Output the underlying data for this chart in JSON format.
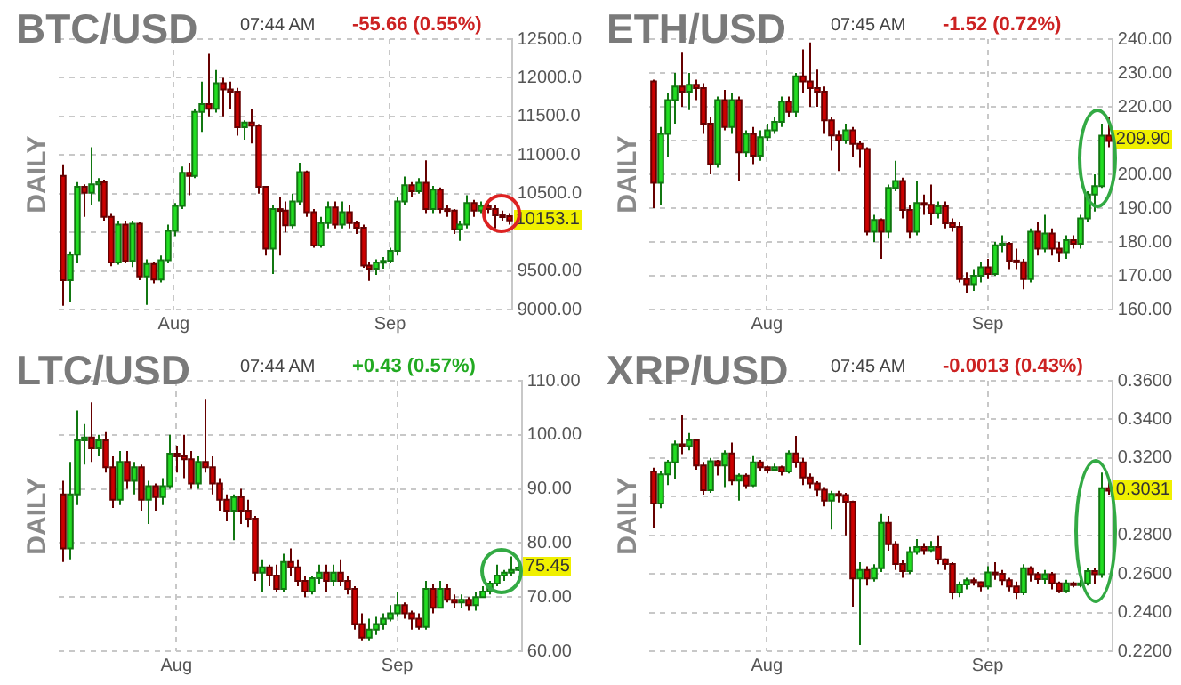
{
  "chart_data": [
    {
      "type": "candlestick",
      "title": "BTC/USD",
      "ylabel": "DAILY",
      "grid": true,
      "annotations": [
        "07:44 AM",
        "-55.66 (0.55%)",
        "10153.1"
      ],
      "categories": [
        null,
        null,
        null,
        null,
        null,
        null,
        null,
        null,
        null,
        null,
        null,
        null,
        null,
        null,
        null,
        null,
        "Aug",
        null,
        null,
        null,
        null,
        null,
        null,
        null,
        null,
        null,
        null,
        null,
        null,
        null,
        null,
        null,
        null,
        null,
        null,
        null,
        null,
        null,
        null,
        null,
        null,
        null,
        null,
        null,
        null,
        null,
        null,
        "Sep",
        null,
        null,
        null,
        null,
        null,
        null,
        null,
        null,
        null,
        null,
        null,
        null,
        null,
        null,
        null,
        null,
        null
      ],
      "ylim": [
        9000,
        12500
      ],
      "yticks": [
        {
          "value": 9000,
          "label": "9000.00"
        },
        {
          "value": 9500,
          "label": "9500.00"
        },
        {
          "value": 10000,
          "label": null
        },
        {
          "value": 10500,
          "label": "10500.0"
        },
        {
          "value": 11000,
          "label": "11000.0"
        },
        {
          "value": 11500,
          "label": "11500.0"
        },
        {
          "value": 12000,
          "label": "12000.0"
        },
        {
          "value": 12500,
          "label": "12500.0"
        }
      ],
      "ohlc": [
        [
          10730,
          10880,
          9050,
          9380
        ],
        [
          9380,
          9750,
          9100,
          9710
        ],
        [
          9710,
          10650,
          9600,
          10590
        ],
        [
          10590,
          10620,
          10200,
          10510
        ],
        [
          10510,
          11100,
          10350,
          10620
        ],
        [
          10620,
          10700,
          10400,
          10650
        ],
        [
          10650,
          10680,
          10150,
          10200
        ],
        [
          10200,
          10250,
          9560,
          9610
        ],
        [
          9610,
          10150,
          9580,
          10100
        ],
        [
          10100,
          10150,
          9600,
          9630
        ],
        [
          9630,
          10150,
          9550,
          10110
        ],
        [
          10110,
          10140,
          9380,
          9430
        ],
        [
          9430,
          9650,
          9060,
          9590
        ],
        [
          9590,
          9620,
          9340,
          9390
        ],
        [
          9390,
          9700,
          9350,
          9640
        ],
        [
          9640,
          10100,
          9600,
          10020
        ],
        [
          10020,
          10380,
          9950,
          10340
        ],
        [
          10340,
          10850,
          10300,
          10770
        ],
        [
          10770,
          10900,
          10480,
          10730
        ],
        [
          10730,
          11600,
          10700,
          11560
        ],
        [
          11560,
          11950,
          11300,
          11660
        ],
        [
          11660,
          12310,
          11500,
          11600
        ],
        [
          11600,
          12100,
          11550,
          11930
        ],
        [
          11930,
          12000,
          11500,
          11850
        ],
        [
          11850,
          11950,
          11600,
          11820
        ],
        [
          11820,
          11870,
          11250,
          11360
        ],
        [
          11360,
          11450,
          11200,
          11420
        ],
        [
          11420,
          11600,
          11150,
          11380
        ],
        [
          11380,
          11400,
          10500,
          10590
        ],
        [
          10590,
          10600,
          9700,
          9790
        ],
        [
          9790,
          10350,
          9460,
          10300
        ],
        [
          10300,
          10450,
          9700,
          10280
        ],
        [
          10280,
          10400,
          10000,
          10090
        ],
        [
          10090,
          10500,
          10050,
          10400
        ],
        [
          10400,
          10900,
          10350,
          10780
        ],
        [
          10780,
          10800,
          10200,
          10260
        ],
        [
          10260,
          10300,
          9800,
          9830
        ],
        [
          9830,
          10200,
          9800,
          10120
        ],
        [
          10120,
          10400,
          10050,
          10320
        ],
        [
          10320,
          10400,
          10050,
          10100
        ],
        [
          10100,
          10400,
          10050,
          10260
        ],
        [
          10260,
          10350,
          10050,
          10120
        ],
        [
          10120,
          10150,
          9980,
          10060
        ],
        [
          10060,
          10100,
          9540,
          9570
        ],
        [
          9570,
          9620,
          9370,
          9530
        ],
        [
          9530,
          9650,
          9450,
          9610
        ],
        [
          9610,
          9680,
          9530,
          9630
        ],
        [
          9630,
          9800,
          9600,
          9760
        ],
        [
          9760,
          10450,
          9700,
          10400
        ],
        [
          10400,
          10720,
          10350,
          10610
        ],
        [
          10610,
          10650,
          10450,
          10530
        ],
        [
          10530,
          10700,
          10500,
          10640
        ],
        [
          10640,
          10930,
          10250,
          10300
        ],
        [
          10300,
          10600,
          10250,
          10550
        ],
        [
          10550,
          10580,
          10250,
          10300
        ],
        [
          10300,
          10350,
          10200,
          10280
        ],
        [
          10280,
          10300,
          9980,
          10040
        ],
        [
          10040,
          10150,
          9890,
          10100
        ],
        [
          10100,
          10480,
          10050,
          10380
        ],
        [
          10380,
          10420,
          10200,
          10280
        ],
        [
          10280,
          10400,
          10250,
          10340
        ],
        [
          10340,
          10400,
          10250,
          10300
        ],
        [
          10300,
          10350,
          10050,
          10220
        ],
        [
          10220,
          10280,
          10150,
          10208.8
        ],
        [
          10208.8,
          10250,
          10100,
          10153.1
        ]
      ]
    },
    {
      "type": "candlestick",
      "title": "ETH/USD",
      "ylabel": "DAILY",
      "grid": true,
      "annotations": [
        "07:45 AM",
        "-1.52 (0.72%)",
        "209.90"
      ],
      "categories": [
        null,
        null,
        null,
        null,
        null,
        null,
        null,
        null,
        null,
        null,
        null,
        null,
        null,
        null,
        null,
        null,
        "Aug",
        null,
        null,
        null,
        null,
        null,
        null,
        null,
        null,
        null,
        null,
        null,
        null,
        null,
        null,
        null,
        null,
        null,
        null,
        null,
        null,
        null,
        null,
        null,
        null,
        null,
        null,
        null,
        null,
        null,
        null,
        "Sep",
        null,
        null,
        null,
        null,
        null,
        null,
        null,
        null,
        null,
        null,
        null,
        null,
        null,
        null,
        null,
        null,
        null
      ],
      "ylim": [
        160,
        240
      ],
      "yticks": [
        {
          "value": 160,
          "label": "160.00"
        },
        {
          "value": 170,
          "label": "170.00"
        },
        {
          "value": 180,
          "label": "180.00"
        },
        {
          "value": 190,
          "label": "190.00"
        },
        {
          "value": 200,
          "label": "200.00"
        },
        {
          "value": 210,
          "label": null
        },
        {
          "value": 220,
          "label": "220.00"
        },
        {
          "value": 230,
          "label": "230.00"
        },
        {
          "value": 240,
          "label": "240.00"
        }
      ],
      "ohlc": [
        [
          227.5,
          228,
          190,
          197.5
        ],
        [
          197.5,
          214,
          191,
          212
        ],
        [
          212,
          224,
          205,
          222
        ],
        [
          222,
          230,
          215,
          226
        ],
        [
          226,
          236,
          220,
          224.5
        ],
        [
          224.5,
          230,
          219,
          226.5
        ],
        [
          226.5,
          228,
          222,
          225.5
        ],
        [
          225.5,
          227,
          212,
          215
        ],
        [
          215,
          217,
          200,
          203
        ],
        [
          203,
          223,
          202,
          222
        ],
        [
          222,
          225,
          213,
          214
        ],
        [
          214,
          224,
          212,
          222
        ],
        [
          222,
          223,
          198,
          206.5
        ],
        [
          206.5,
          213,
          205,
          212
        ],
        [
          212,
          214,
          203,
          205.5
        ],
        [
          205.5,
          213,
          204,
          211
        ],
        [
          211,
          215,
          210,
          213
        ],
        [
          213,
          217,
          212,
          215.5
        ],
        [
          215.5,
          223,
          214,
          221.5
        ],
        [
          221.5,
          223,
          217,
          218.5
        ],
        [
          218.5,
          230,
          217,
          229
        ],
        [
          229,
          237,
          224,
          227.5
        ],
        [
          227.5,
          239,
          220,
          225.5
        ],
        [
          225.5,
          231,
          220,
          224.5
        ],
        [
          224.5,
          226,
          212,
          216
        ],
        [
          216,
          217,
          207,
          211.5
        ],
        [
          211.5,
          213,
          201,
          210
        ],
        [
          210,
          215,
          209,
          213
        ],
        [
          213,
          214,
          205,
          209
        ],
        [
          209,
          210,
          202,
          207.5
        ],
        [
          207.5,
          208,
          182,
          183
        ],
        [
          183,
          188,
          180,
          186.5
        ],
        [
          186.5,
          187,
          175,
          183
        ],
        [
          183,
          197,
          181,
          196
        ],
        [
          196,
          204,
          195,
          198
        ],
        [
          198,
          199,
          187,
          189.5
        ],
        [
          189.5,
          191,
          181,
          183
        ],
        [
          183,
          198,
          182,
          191.5
        ],
        [
          191.5,
          194,
          188,
          191
        ],
        [
          191,
          197,
          185,
          188.5
        ],
        [
          188.5,
          192,
          187,
          190.5
        ],
        [
          190.5,
          192,
          184,
          185.5
        ],
        [
          185.5,
          187,
          183,
          184.5
        ],
        [
          184.5,
          186,
          168,
          169
        ],
        [
          169,
          171,
          165,
          167.5
        ],
        [
          167.5,
          172,
          165.5,
          170
        ],
        [
          170,
          174,
          168,
          172.5
        ],
        [
          172.5,
          175,
          169,
          170.5
        ],
        [
          170.5,
          180,
          170,
          179
        ],
        [
          179,
          182,
          177,
          179.5
        ],
        [
          179.5,
          180,
          172,
          174.5
        ],
        [
          174.5,
          178,
          172,
          174
        ],
        [
          174,
          175,
          166,
          169
        ],
        [
          169,
          184,
          168,
          183
        ],
        [
          183,
          186,
          176,
          178
        ],
        [
          178,
          188,
          177,
          182.5
        ],
        [
          182.5,
          184,
          176,
          178
        ],
        [
          178,
          180,
          174,
          177
        ],
        [
          177,
          182,
          175,
          180.5
        ],
        [
          180.5,
          182,
          178,
          179.5
        ],
        [
          179.5,
          188,
          178,
          187
        ],
        [
          187,
          195,
          186,
          194
        ],
        [
          194,
          200,
          189,
          196.5
        ],
        [
          196.5,
          215,
          196,
          211.42
        ],
        [
          211.42,
          217,
          208,
          209.9
        ]
      ]
    },
    {
      "type": "candlestick",
      "title": "LTC/USD",
      "ylabel": "DAILY",
      "grid": true,
      "annotations": [
        "07:44 AM",
        "+0.43 (0.57%)",
        "75.45"
      ],
      "categories": [
        null,
        null,
        null,
        null,
        null,
        null,
        null,
        null,
        null,
        null,
        null,
        null,
        null,
        null,
        null,
        null,
        "Aug",
        null,
        null,
        null,
        null,
        null,
        null,
        null,
        null,
        null,
        null,
        null,
        null,
        null,
        null,
        null,
        null,
        null,
        null,
        null,
        null,
        null,
        null,
        null,
        null,
        null,
        null,
        null,
        null,
        null,
        null,
        "Sep",
        null,
        null,
        null,
        null,
        null,
        null,
        null,
        null,
        null,
        null,
        null,
        null,
        null,
        null,
        null,
        null,
        null
      ],
      "ylim": [
        60,
        110
      ],
      "yticks": [
        {
          "value": 60,
          "label": "60.00"
        },
        {
          "value": 70,
          "label": "70.00"
        },
        {
          "value": 80,
          "label": "80.00"
        },
        {
          "value": 90,
          "label": "90.00"
        },
        {
          "value": 100,
          "label": "100.00"
        },
        {
          "value": 110,
          "label": "110.00"
        }
      ],
      "ohlc": [
        [
          89,
          91.5,
          76.5,
          79
        ],
        [
          79,
          95,
          77,
          89
        ],
        [
          89,
          104.5,
          87,
          99
        ],
        [
          99,
          102,
          94.5,
          99.5
        ],
        [
          99.5,
          106,
          95,
          97.5
        ],
        [
          97.5,
          100,
          96,
          99
        ],
        [
          99,
          100.5,
          93,
          94
        ],
        [
          94,
          96,
          86.5,
          88
        ],
        [
          88,
          97,
          87,
          95
        ],
        [
          95,
          97,
          90,
          91.5
        ],
        [
          91.5,
          95,
          89,
          94
        ],
        [
          94,
          94.5,
          86,
          88
        ],
        [
          88,
          91.5,
          83.5,
          90.5
        ],
        [
          90.5,
          91,
          86,
          88.5
        ],
        [
          88.5,
          92,
          87,
          90.5
        ],
        [
          90.5,
          100,
          90,
          96.5
        ],
        [
          96.5,
          98,
          93,
          96
        ],
        [
          96,
          100,
          92,
          95.5
        ],
        [
          95.5,
          97,
          90,
          91
        ],
        [
          91,
          96,
          90,
          95
        ],
        [
          95,
          106.5,
          93,
          94
        ],
        [
          94,
          96,
          89,
          91
        ],
        [
          91,
          92,
          86,
          88
        ],
        [
          88,
          89,
          84,
          86
        ],
        [
          86,
          89,
          80.5,
          88.5
        ],
        [
          88.5,
          90,
          83.5,
          86
        ],
        [
          86,
          88,
          83,
          84.5
        ],
        [
          84.5,
          85,
          73,
          74.5
        ],
        [
          74.5,
          77,
          71,
          75.5
        ],
        [
          75.5,
          76,
          72,
          74
        ],
        [
          74,
          76,
          71,
          71.5
        ],
        [
          71.5,
          78,
          71,
          76.5
        ],
        [
          76.5,
          79,
          74,
          75.5
        ],
        [
          75.5,
          77,
          72,
          73
        ],
        [
          73,
          74,
          70,
          71
        ],
        [
          71,
          74,
          70.5,
          73.5
        ],
        [
          73.5,
          76,
          72.5,
          74.5
        ],
        [
          74.5,
          76,
          71,
          73
        ],
        [
          73,
          76,
          72,
          74.5
        ],
        [
          74.5,
          77,
          72,
          73
        ],
        [
          73,
          74,
          70.5,
          71.5
        ],
        [
          71.5,
          72,
          64,
          65
        ],
        [
          65,
          67,
          62,
          62.5
        ],
        [
          62.5,
          66,
          62,
          64
        ],
        [
          64,
          66.5,
          63,
          65
        ],
        [
          65,
          67,
          64,
          66
        ],
        [
          66,
          68.5,
          65.5,
          67
        ],
        [
          67,
          71,
          66.5,
          68.5
        ],
        [
          68.5,
          69,
          66,
          67
        ],
        [
          67,
          67.5,
          64,
          66
        ],
        [
          66,
          67,
          64,
          64.5
        ],
        [
          64.5,
          73,
          64,
          71.5
        ],
        [
          71.5,
          72.5,
          67,
          68
        ],
        [
          68,
          73,
          68,
          71.5
        ],
        [
          71.5,
          72.5,
          69,
          69.5
        ],
        [
          69.5,
          70.5,
          68,
          69
        ],
        [
          69,
          70.5,
          68,
          69.5
        ],
        [
          69.5,
          70,
          67.5,
          68.5
        ],
        [
          68.5,
          71,
          67.5,
          70
        ],
        [
          70,
          72,
          70,
          71
        ],
        [
          71,
          73,
          70.5,
          72.5
        ],
        [
          72.5,
          76,
          72,
          74
        ],
        [
          74,
          75,
          73,
          74.5
        ],
        [
          74.5,
          77.5,
          74,
          75.02
        ],
        [
          75.02,
          76,
          74.8,
          75.45
        ]
      ]
    },
    {
      "type": "candlestick",
      "title": "XRP/USD",
      "ylabel": "DAILY",
      "grid": true,
      "annotations": [
        "07:45 AM",
        "-0.0013 (0.43%)",
        "0.3031"
      ],
      "categories": [
        null,
        null,
        null,
        null,
        null,
        null,
        null,
        null,
        null,
        null,
        null,
        null,
        null,
        null,
        null,
        null,
        "Aug",
        null,
        null,
        null,
        null,
        null,
        null,
        null,
        null,
        null,
        null,
        null,
        null,
        null,
        null,
        null,
        null,
        null,
        null,
        null,
        null,
        null,
        null,
        null,
        null,
        null,
        null,
        null,
        null,
        null,
        null,
        "Sep",
        null,
        null,
        null,
        null,
        null,
        null,
        null,
        null,
        null,
        null,
        null,
        null,
        null,
        null,
        null,
        null,
        null
      ],
      "ylim": [
        0.22,
        0.36
      ],
      "yticks": [
        {
          "value": 0.22,
          "label": "0.2200"
        },
        {
          "value": 0.24,
          "label": "0.2400"
        },
        {
          "value": 0.26,
          "label": "0.2600"
        },
        {
          "value": 0.28,
          "label": "0.2800"
        },
        {
          "value": 0.3,
          "label": null
        },
        {
          "value": 0.32,
          "label": "0.3200"
        },
        {
          "value": 0.34,
          "label": "0.3400"
        },
        {
          "value": 0.36,
          "label": "0.3600"
        }
      ],
      "ohlc": [
        [
          0.313,
          0.315,
          0.284,
          0.2964
        ],
        [
          0.2964,
          0.313,
          0.294,
          0.3115
        ],
        [
          0.3115,
          0.319,
          0.306,
          0.3177
        ],
        [
          0.3177,
          0.329,
          0.309,
          0.3271
        ],
        [
          0.3271,
          0.3425,
          0.322,
          0.3262
        ],
        [
          0.3262,
          0.333,
          0.324,
          0.3293
        ],
        [
          0.3293,
          0.33,
          0.314,
          0.3161
        ],
        [
          0.3161,
          0.318,
          0.301,
          0.3033
        ],
        [
          0.3033,
          0.32,
          0.302,
          0.3183
        ],
        [
          0.3183,
          0.319,
          0.311,
          0.3161
        ],
        [
          0.3161,
          0.324,
          0.305,
          0.3224
        ],
        [
          0.3224,
          0.328,
          0.306,
          0.3083
        ],
        [
          0.3083,
          0.312,
          0.298,
          0.3108
        ],
        [
          0.3108,
          0.312,
          0.304,
          0.3058
        ],
        [
          0.3058,
          0.321,
          0.305,
          0.3177
        ],
        [
          0.3177,
          0.319,
          0.313,
          0.3152
        ],
        [
          0.3152,
          0.316,
          0.312,
          0.314
        ],
        [
          0.314,
          0.317,
          0.313,
          0.3152
        ],
        [
          0.3152,
          0.316,
          0.311,
          0.313
        ],
        [
          0.313,
          0.324,
          0.312,
          0.3224
        ],
        [
          0.3224,
          0.3315,
          0.315,
          0.3177
        ],
        [
          0.3177,
          0.32,
          0.306,
          0.3099
        ],
        [
          0.3099,
          0.312,
          0.304,
          0.3068
        ],
        [
          0.3068,
          0.308,
          0.3,
          0.3036
        ],
        [
          0.3036,
          0.305,
          0.295,
          0.298
        ],
        [
          0.298,
          0.303,
          0.283,
          0.3014
        ],
        [
          0.3014,
          0.303,
          0.297,
          0.3008
        ],
        [
          0.3008,
          0.302,
          0.28,
          0.2974
        ],
        [
          0.2974,
          0.298,
          0.243,
          0.2576
        ],
        [
          0.2576,
          0.266,
          0.2232,
          0.262
        ],
        [
          0.262,
          0.264,
          0.254,
          0.2576
        ],
        [
          0.2576,
          0.265,
          0.256,
          0.2629
        ],
        [
          0.2629,
          0.291,
          0.261,
          0.2864
        ],
        [
          0.2864,
          0.29,
          0.272,
          0.2754
        ],
        [
          0.2754,
          0.277,
          0.262,
          0.2651
        ],
        [
          0.2651,
          0.267,
          0.258,
          0.2614
        ],
        [
          0.2614,
          0.274,
          0.26,
          0.2714
        ],
        [
          0.2714,
          0.278,
          0.27,
          0.2739
        ],
        [
          0.2739,
          0.276,
          0.27,
          0.2723
        ],
        [
          0.2723,
          0.277,
          0.271,
          0.2739
        ],
        [
          0.2739,
          0.28,
          0.265,
          0.2676
        ],
        [
          0.2676,
          0.268,
          0.262,
          0.2651
        ],
        [
          0.2651,
          0.266,
          0.247,
          0.2504
        ],
        [
          0.2504,
          0.256,
          0.248,
          0.2545
        ],
        [
          0.2545,
          0.258,
          0.252,
          0.2567
        ],
        [
          0.2567,
          0.258,
          0.254,
          0.2557
        ],
        [
          0.2557,
          0.256,
          0.251,
          0.2535
        ],
        [
          0.2535,
          0.264,
          0.252,
          0.2607
        ],
        [
          0.2607,
          0.266,
          0.257,
          0.2601
        ],
        [
          0.2601,
          0.262,
          0.254,
          0.2567
        ],
        [
          0.2567,
          0.258,
          0.251,
          0.2535
        ],
        [
          0.2535,
          0.256,
          0.247,
          0.2504
        ],
        [
          0.2504,
          0.265,
          0.249,
          0.2629
        ],
        [
          0.2629,
          0.264,
          0.256,
          0.2598
        ],
        [
          0.2598,
          0.261,
          0.255,
          0.2573
        ],
        [
          0.2573,
          0.262,
          0.255,
          0.2598
        ],
        [
          0.2598,
          0.261,
          0.252,
          0.2551
        ],
        [
          0.2551,
          0.256,
          0.25,
          0.2513
        ],
        [
          0.2513,
          0.257,
          0.25,
          0.2551
        ],
        [
          0.2551,
          0.256,
          0.253,
          0.2545
        ],
        [
          0.2545,
          0.257,
          0.253,
          0.2551
        ],
        [
          0.2551,
          0.263,
          0.254,
          0.2614
        ],
        [
          0.2614,
          0.263,
          0.255,
          0.2598
        ],
        [
          0.2598,
          0.3125,
          0.258,
          0.3044
        ],
        [
          0.3044,
          0.308,
          0.301,
          0.3031
        ]
      ]
    }
  ]
}
